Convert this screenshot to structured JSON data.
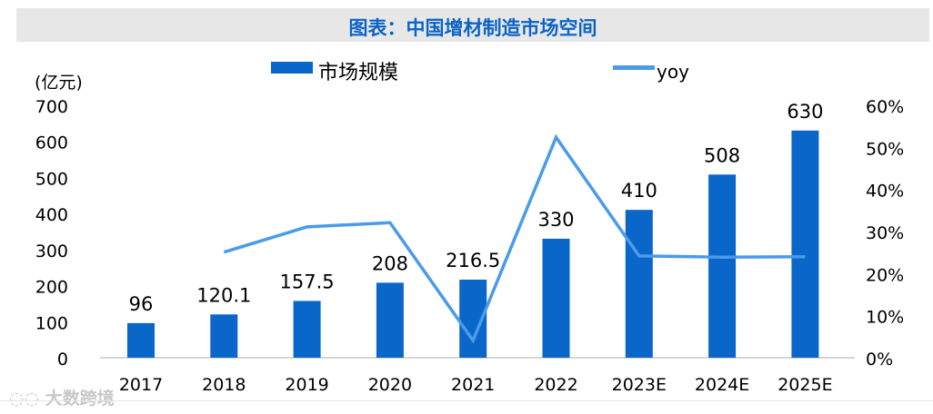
{
  "title": "图表：中国增材制造市场空间",
  "watermark": "大数跨境",
  "chart_data": {
    "type": "bar+line",
    "categories": [
      "2017",
      "2018",
      "2019",
      "2020",
      "2021",
      "2022",
      "2023E",
      "2024E",
      "2025E"
    ],
    "series": [
      {
        "name": "市场规模",
        "type": "bar",
        "axis": "left",
        "color": "#0a66c8",
        "values": [
          96,
          120.1,
          157.5,
          208,
          216.5,
          330,
          410,
          508,
          630
        ],
        "labels": [
          "96",
          "120.1",
          "157.5",
          "208",
          "216.5",
          "330",
          "410",
          "508",
          "630"
        ]
      },
      {
        "name": "yoy",
        "type": "line",
        "axis": "right",
        "color": "#4a9be8",
        "values": [
          null,
          25.1,
          31.1,
          32.1,
          4.1,
          52.4,
          24.2,
          23.9,
          24.0
        ]
      }
    ],
    "ylabel": "(亿元)",
    "ylim": [
      0,
      700
    ],
    "yticks": [
      "0",
      "100",
      "200",
      "300",
      "400",
      "500",
      "600",
      "700"
    ],
    "y2lim": [
      0,
      60
    ],
    "y2ticks": [
      "0%",
      "10%",
      "20%",
      "30%",
      "40%",
      "50%",
      "60%"
    ],
    "legend_position": "top",
    "grid": false
  }
}
